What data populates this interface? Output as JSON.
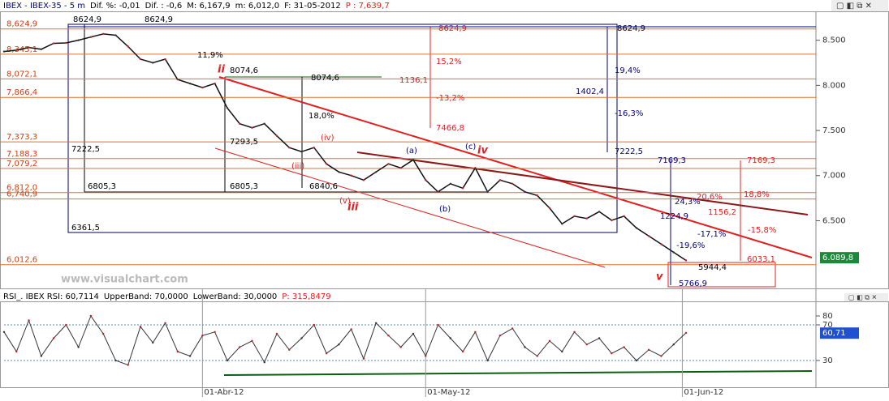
{
  "chart_data": [
    {
      "type": "line",
      "header": [
        {
          "text": "IBEX - IBEX-35 - 5 m",
          "color": "#000080"
        },
        {
          "text": "Dif. %: -0,01",
          "color": "#000"
        },
        {
          "text": "Dif. : -0,6",
          "color": "#000"
        },
        {
          "text": "M: 6,167,9",
          "color": "#000"
        },
        {
          "text": "m: 6,012,0",
          "color": "#000"
        },
        {
          "text": "F: 31-05-2012",
          "color": "#000"
        },
        {
          "text": "P : 7,639,7",
          "color": "#e02020"
        }
      ],
      "watermark": "www.visualchart.com",
      "color": "#111111",
      "values": [
        8375,
        8390,
        8420,
        8400,
        8465,
        8470,
        8500,
        8535,
        8570,
        8555,
        8430,
        8290,
        8250,
        8290,
        8065,
        8020,
        7975,
        8020,
        7750,
        7575,
        7530,
        7575,
        7440,
        7310,
        7265,
        7310,
        7130,
        7040,
        7000,
        6950,
        7040,
        7130,
        7085,
        7175,
        6950,
        6820,
        6910,
        6860,
        7085,
        6820,
        6950,
        6910,
        6820,
        6780,
        6640,
        6465,
        6550,
        6525,
        6600,
        6505,
        6550,
        6420,
        6330,
        6240,
        6150,
        6060
      ],
      "xlim": [
        0,
        55
      ],
      "xticks": [
        {
          "value": 16,
          "label": "01-Abr-12"
        },
        {
          "value": 34,
          "label": "01-May-12"
        },
        {
          "value": 54.7,
          "label": "01-Jun-12"
        }
      ],
      "ylim": [
        5750,
        8820
      ],
      "yticks": [
        {
          "value": 8500,
          "label": "8.500"
        },
        {
          "value": 8000,
          "label": "8.000"
        },
        {
          "value": 7500,
          "label": "7.500"
        },
        {
          "value": 7000,
          "label": "7.000"
        },
        {
          "value": 6500,
          "label": "6.500"
        }
      ],
      "levels": [
        {
          "value": 8624.9,
          "label": "8,624,9"
        },
        {
          "value": 8345.1,
          "label": "8,345,1"
        },
        {
          "value": 8072.1,
          "label": "8,072,1"
        },
        {
          "value": 7866.4,
          "label": "7,866,4"
        },
        {
          "value": 7373.3,
          "label": "7,373,3"
        },
        {
          "value": 7188.3,
          "label": "7,188,3"
        },
        {
          "value": 7079.2,
          "label": "7,079,2"
        },
        {
          "value": 6812.0,
          "label": "6,812,0"
        },
        {
          "value": 6740.9,
          "label": "6,740,9"
        },
        {
          "value": 6012.6,
          "label": "6,012,6"
        }
      ],
      "last_price": {
        "value": 6089.8,
        "label": "6.089,8"
      },
      "annotations": [
        {
          "text": "8624,9",
          "color": "#000000"
        },
        {
          "text": "8624,9",
          "color": "#000000"
        },
        {
          "text": "8624,9",
          "color": "#e02020"
        },
        {
          "text": "8624,9",
          "color": "#000060"
        },
        {
          "text": "15,2%",
          "color": "#e02020"
        },
        {
          "text": "1136,1",
          "color": "#e02020"
        },
        {
          "text": "-13,2%",
          "color": "#e02020"
        },
        {
          "text": "7466,8",
          "color": "#e02020"
        },
        {
          "text": "19,4%",
          "color": "#000080"
        },
        {
          "text": "1402,4",
          "color": "#000080"
        },
        {
          "text": "-16,3%",
          "color": "#000080"
        },
        {
          "text": "7222,5",
          "color": "#000080"
        },
        {
          "text": "8074,6",
          "color": "#000000"
        },
        {
          "text": "8074,6",
          "color": "#000000"
        },
        {
          "text": "18,0%",
          "color": "#000000"
        },
        {
          "text": "6805,3",
          "color": "#000000"
        },
        {
          "text": "6805,3",
          "color": "#000000"
        },
        {
          "text": "6840,6",
          "color": "#000000"
        },
        {
          "text": "6361,5",
          "color": "#000000"
        },
        {
          "text": "7222,5",
          "color": "#000000"
        },
        {
          "text": "7293,5",
          "color": "#000000"
        },
        {
          "text": "ii",
          "color": "#e02020"
        },
        {
          "text": "iii",
          "color": "#e02020"
        },
        {
          "text": "iv",
          "color": "#e02020"
        },
        {
          "text": "v",
          "color": "#e02020"
        },
        {
          "text": "(a)",
          "color": "#000080"
        },
        {
          "text": "(b)",
          "color": "#000080"
        },
        {
          "text": "(c)",
          "color": "#000080"
        },
        {
          "text": "(iii)",
          "color": "#e02020"
        },
        {
          "text": "(iv)",
          "color": "#e02020"
        },
        {
          "text": "(v)",
          "color": "#e02020"
        },
        {
          "text": "7169,3",
          "color": "#000080"
        },
        {
          "text": "7169,3",
          "color": "#e02020"
        },
        {
          "text": "24,3%",
          "color": "#000080"
        },
        {
          "text": "20,6%",
          "color": "#e02020"
        },
        {
          "text": "1156,2",
          "color": "#e02020"
        },
        {
          "text": "1224,9",
          "color": "#000080"
        },
        {
          "text": "18,8%",
          "color": "#e02020"
        },
        {
          "text": "-17,1%",
          "color": "#000080"
        },
        {
          "text": "-15,8%",
          "color": "#e02020"
        },
        {
          "text": "-19,6%",
          "color": "#000080"
        },
        {
          "text": "6033,1",
          "color": "#e02020"
        },
        {
          "text": "5944,4",
          "color": "#000000"
        },
        {
          "text": "5766,9",
          "color": "#000080"
        },
        {
          "text": "11,9%",
          "color": "#000000"
        }
      ]
    },
    {
      "type": "line",
      "header": [
        {
          "text": "RSI_. IBEX RSI: 60,7114",
          "color": "#000"
        },
        {
          "text": "UpperBand: 70,0000",
          "color": "#000"
        },
        {
          "text": "LowerBand: 30,0000",
          "color": "#000"
        },
        {
          "text": "P: 315,8479",
          "color": "#e02020"
        }
      ],
      "color": "#333333",
      "values": [
        62,
        40,
        75,
        35,
        55,
        70,
        45,
        80,
        60,
        30,
        25,
        68,
        50,
        72,
        40,
        35,
        58,
        62,
        30,
        45,
        52,
        28,
        60,
        42,
        55,
        70,
        38,
        48,
        65,
        32,
        72,
        58,
        45,
        60,
        35,
        70,
        55,
        40,
        62,
        30,
        58,
        66,
        45,
        35,
        52,
        40,
        62,
        48,
        55,
        38,
        45,
        30,
        42,
        35,
        48,
        61
      ],
      "xlim": [
        0,
        55
      ],
      "ylim": [
        0,
        100
      ],
      "yticks": [
        80,
        70,
        30
      ],
      "bands": [
        70,
        30
      ],
      "last_value": {
        "value": 60.71,
        "label": "60,71"
      }
    }
  ]
}
